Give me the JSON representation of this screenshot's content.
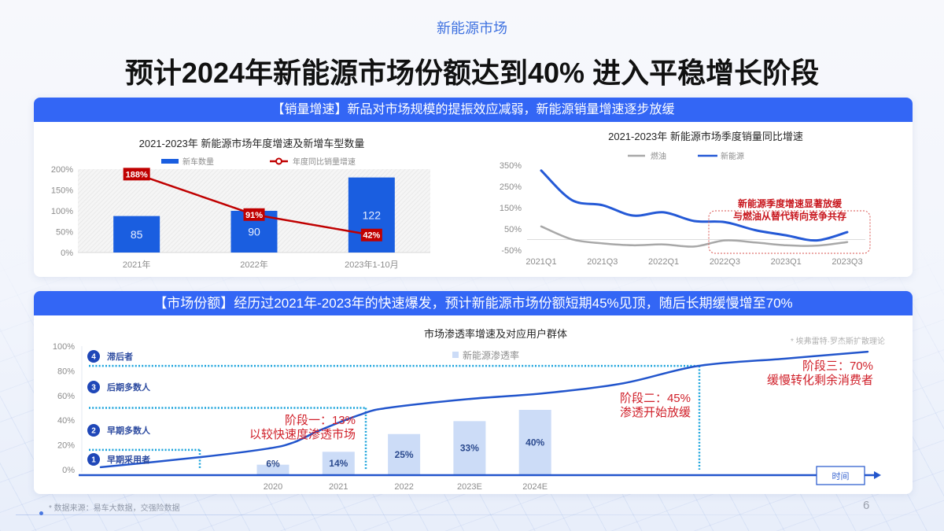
{
  "header": {
    "section_label": "新能源市场",
    "title": "预计2024年新能源市场份额达到40%  进入平稳增长阶段"
  },
  "panels": {
    "sales_growth": {
      "banner": "【销量增速】新品对市场规模的提振效应减弱，新能源销量增速逐步放缓"
    },
    "market_share": {
      "banner": "【市场份额】经历过2021年-2023年的快速爆发，预计新能源市场份额短期45%见顶，随后长期缓慢增至70%"
    }
  },
  "footer": {
    "source_note": "* 数据来源：易车大数据，交强险数据",
    "page_number": "6"
  },
  "colors": {
    "accent": "#3366f5",
    "bar_blue": "#1a5ee0",
    "highlight_red": "#c00000",
    "line_blue": "#2459d6",
    "line_gray": "#a8a8a8",
    "penetration_bar": "#ccdcf7",
    "adoption_curve": "#2255cc",
    "threshold_cyan": "#1aa3dc",
    "stage_red": "#d0202a"
  },
  "chart_data": [
    {
      "type": "bar+line",
      "title": "2021-2023年 新能源市场年度增速及新增车型数量",
      "categories": [
        "2021年",
        "2022年",
        "2023年1-10月"
      ],
      "series": [
        {
          "name": "新车数量",
          "type": "bar",
          "axis": "secondary",
          "values": [
            85,
            90,
            122
          ],
          "color": "#1a5ee0"
        },
        {
          "name": "年度同比销量增速",
          "type": "line",
          "axis": "primary",
          "values": [
            188,
            91,
            42
          ],
          "labels": [
            "188%",
            "91%",
            "42%"
          ],
          "color": "#c00000"
        }
      ],
      "yticks": [
        "200%",
        "150%",
        "100%",
        "50%",
        "0%"
      ],
      "ylim": [
        0,
        200
      ],
      "y2lim": [
        50,
        130
      ],
      "xlabel": "",
      "ylabel": "",
      "legend_position": "top",
      "grid": false
    },
    {
      "type": "line",
      "title": "2021-2023年 新能源市场季度销量同比增速",
      "x": [
        "2021Q1",
        "2021Q2",
        "2021Q3",
        "2021Q4",
        "2022Q1",
        "2022Q2",
        "2022Q3",
        "2022Q4",
        "2023Q1",
        "2023Q2",
        "2023Q3"
      ],
      "xtick_labels": [
        "2021Q1",
        "2021Q3",
        "2022Q1",
        "2022Q3",
        "2023Q1",
        "2023Q3"
      ],
      "series": [
        {
          "name": "燃油",
          "values": [
            62,
            1,
            -18,
            -27,
            -23,
            -33,
            -4,
            -14,
            -27,
            -29,
            -12
          ],
          "color": "#a8a8a8"
        },
        {
          "name": "新能源",
          "values": [
            325,
            186,
            162,
            113,
            128,
            87,
            82,
            44,
            20,
            -4,
            35
          ],
          "color": "#2459d6"
        }
      ],
      "yticks": [
        "350%",
        "250%",
        "150%",
        "50%",
        "-50%"
      ],
      "ylim": [
        -50,
        350
      ],
      "xlabel": "",
      "ylabel": "",
      "legend_position": "top",
      "grid": false,
      "annotation": {
        "lines": [
          "新能源季度增速显著放缓",
          "与燃油从替代转向竞争共存"
        ],
        "range": [
          "2022Q2",
          "2023Q3"
        ]
      }
    },
    {
      "type": "bar+line",
      "title": "市场渗透率增速及对应用户群体",
      "legend": [
        "新能源渗透率"
      ],
      "categories": [
        "2020",
        "2021",
        "2022",
        "2023E",
        "2024E"
      ],
      "values": [
        6,
        14,
        25,
        33,
        40
      ],
      "labels": [
        "6%",
        "14%",
        "25%",
        "33%",
        "40%"
      ],
      "yticks": [
        "100%",
        "80%",
        "60%",
        "40%",
        "20%",
        "0%"
      ],
      "ylim": [
        0,
        100
      ],
      "xlabel": "时间",
      "ylabel": "",
      "note": "* 埃弗雷特·罗杰斯扩散理论",
      "user_groups": [
        {
          "num": "4",
          "label": "滞后者"
        },
        {
          "num": "3",
          "label": "后期多数人"
        },
        {
          "num": "2",
          "label": "早期多数人"
        },
        {
          "num": "1",
          "label": "早期采用者"
        }
      ],
      "group_thresholds": [
        16,
        50,
        84
      ],
      "stage_boundaries_t": [
        14.1,
        35.2,
        77.6
      ],
      "stages": [
        {
          "title": "阶段一：13%",
          "desc": "以较快速度渗透市场"
        },
        {
          "title": "阶段二：45%",
          "desc": "渗透开始放缓"
        },
        {
          "title": "阶段三：70%",
          "desc": "缓慢转化剩余消费者"
        }
      ],
      "adoption_curve": [
        [
          1.5,
          2
        ],
        [
          14,
          10
        ],
        [
          22.7,
          17
        ],
        [
          26,
          22
        ],
        [
          29.4,
          32
        ],
        [
          34.7,
          45
        ],
        [
          38,
          50
        ],
        [
          48,
          57
        ],
        [
          58,
          62
        ],
        [
          68,
          70
        ],
        [
          77.5,
          84
        ],
        [
          88.7,
          90
        ],
        [
          99,
          95.5
        ]
      ]
    }
  ]
}
